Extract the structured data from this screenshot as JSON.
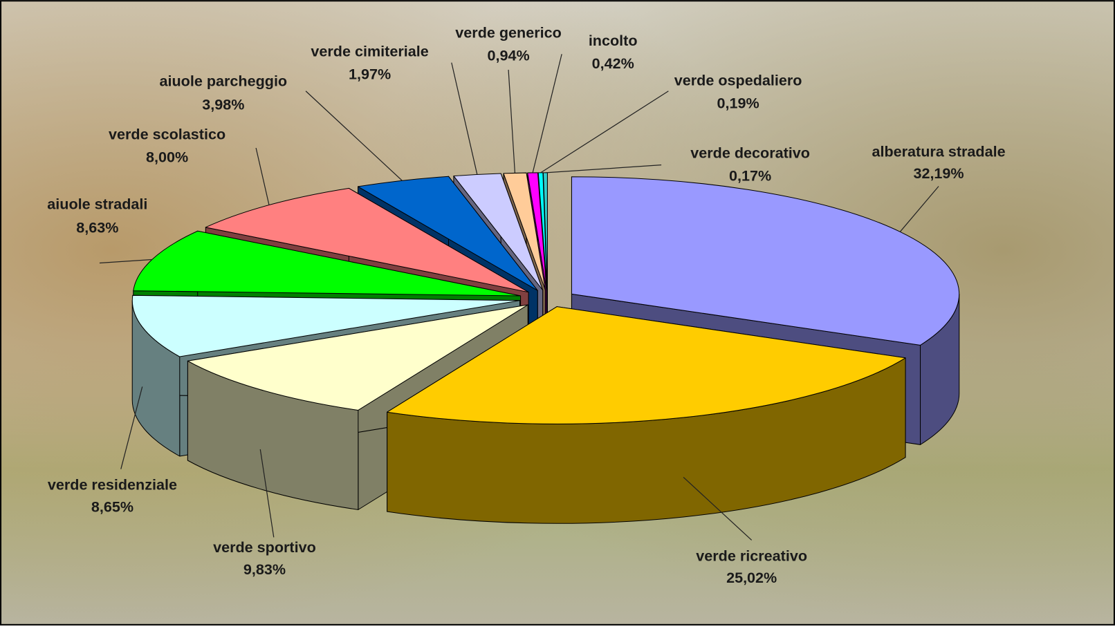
{
  "chart_data": {
    "type": "pie3d",
    "categories": [
      "alberatura stradale",
      "verde ricreativo",
      "verde sportivo",
      "verde residenziale",
      "aiuole stradali",
      "verde scolastico",
      "aiuole parcheggio",
      "verde cimiteriale",
      "verde generico",
      "incolto",
      "verde ospedaliero",
      "verde decorativo"
    ],
    "values": [
      32.19,
      25.02,
      9.83,
      8.65,
      8.63,
      8.0,
      3.98,
      1.97,
      0.94,
      0.42,
      0.19,
      0.17
    ],
    "value_labels": [
      "32,19%",
      "25,02%",
      "9,83%",
      "8,65%",
      "8,63%",
      "8,00%",
      "3,98%",
      "1,97%",
      "0,94%",
      "0,42%",
      "0,19%",
      "0,17%"
    ],
    "colors": [
      "#9999ff",
      "#ffcc00",
      "#ffffcc",
      "#ccffff",
      "#00ff00",
      "#ff8080",
      "#0066cc",
      "#ccccff",
      "#ffcc99",
      "#ff00ff",
      "#00ffff",
      "#33cccc"
    ]
  }
}
